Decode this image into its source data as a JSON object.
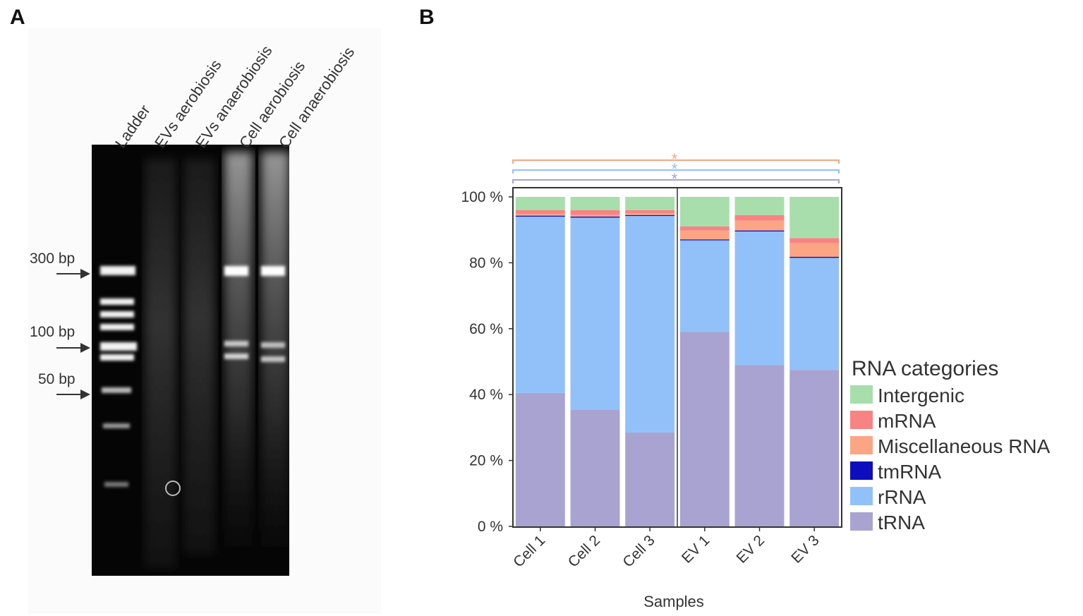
{
  "panels": {
    "a": "A",
    "b": "B"
  },
  "gel": {
    "lanes": [
      "Ladder",
      "EVs aerobiosis",
      "EVs anaerobiosis",
      "Cell aerobiosis",
      "Cell anaerobiosis"
    ],
    "markers": [
      "300 bp",
      "100 bp",
      "50 bp"
    ]
  },
  "chart_data": {
    "type": "bar",
    "stacked": true,
    "categories": [
      "Cell 1",
      "Cell 2",
      "Cell 3",
      "EV 1",
      "EV 2",
      "EV 3"
    ],
    "xlabel": "Samples",
    "ylabel": "",
    "ylim": [
      0,
      100
    ],
    "yticks": [
      "0 %",
      "20 %",
      "40 %",
      "60 %",
      "80 %",
      "100 %"
    ],
    "legend_title": "RNA categories",
    "legend_position": "right",
    "series": [
      {
        "name": "tRNA",
        "color": "#a9a3d2",
        "values": [
          40.5,
          35.5,
          28.5,
          59,
          49,
          47.5
        ]
      },
      {
        "name": "rRNA",
        "color": "#92c1f9",
        "values": [
          53.5,
          58.2,
          65.7,
          27.8,
          40.5,
          34
        ]
      },
      {
        "name": "tmRNA",
        "color": "#0d0dbd",
        "values": [
          0.3,
          0.3,
          0.3,
          0.3,
          0.3,
          0.3
        ]
      },
      {
        "name": "Miscellaneous RNA",
        "color": "#fca584",
        "values": [
          0.5,
          0.5,
          0.5,
          2.7,
          3,
          4.2
        ]
      },
      {
        "name": "mRNA",
        "color": "#f98383",
        "values": [
          1.2,
          1.5,
          1.0,
          1.2,
          1.7,
          1.5
        ]
      },
      {
        "name": "Intergenic",
        "color": "#a8deac",
        "values": [
          4.0,
          4.0,
          4.0,
          9.0,
          5.5,
          12.5
        ]
      }
    ],
    "legend_order": [
      "Intergenic",
      "mRNA",
      "Miscellaneous RNA",
      "tmRNA",
      "rRNA",
      "tRNA"
    ],
    "significance": [
      {
        "label": "*",
        "color": "#f4a882"
      },
      {
        "label": "*",
        "color": "#92c1f9"
      },
      {
        "label": "*",
        "color": "#a9a3d2"
      }
    ]
  }
}
